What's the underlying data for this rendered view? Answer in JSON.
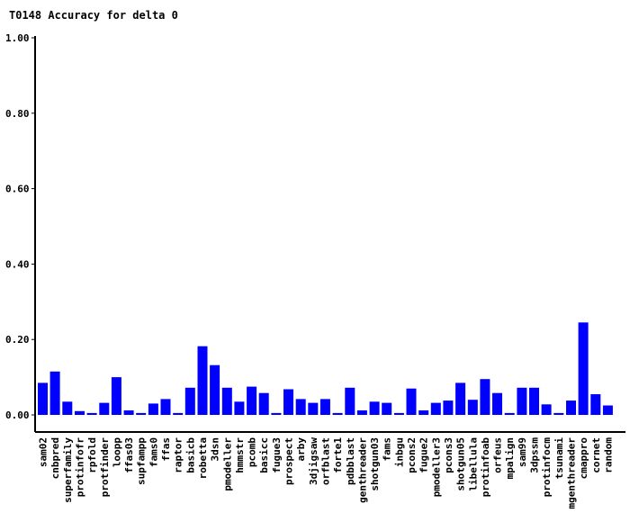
{
  "chart_data": {
    "type": "bar",
    "title": "T0148 Accuracy for delta 0",
    "xlabel": "",
    "ylabel": "",
    "ylim": [
      0,
      1
    ],
    "y_ticks": [
      "0.00",
      "0.20",
      "0.40",
      "0.60",
      "0.80",
      "1.00"
    ],
    "bar_color": "#0000ff",
    "grid": false,
    "categories": [
      "sam02",
      "cnbpred",
      "superfamily",
      "protinfofr",
      "rpfold",
      "protfinder",
      "loopp",
      "ffas03",
      "supfampp",
      "fams0",
      "ffas",
      "raptor",
      "basicb",
      "robetta",
      "3dsn",
      "pmodeller",
      "hmmstr",
      "pcomb",
      "basicc",
      "fugue3",
      "prospect",
      "arby",
      "3djigsaw",
      "orfblast",
      "forte1",
      "pdbblast",
      "genthreader",
      "shotgun03",
      "fams",
      "inbgu",
      "pcons2",
      "fugue2",
      "pmodeller3",
      "pcons3",
      "shotgun05",
      "libellula",
      "protinfoab",
      "orfeus",
      "mpalign",
      "sam99",
      "3dpssm",
      "protinfocm",
      "tsunami",
      "mgenthreader",
      "cmappro",
      "cornet",
      "random"
    ],
    "values": [
      0.085,
      0.115,
      0.035,
      0.01,
      0.005,
      0.032,
      0.1,
      0.012,
      0.005,
      0.03,
      0.042,
      0.005,
      0.072,
      0.182,
      0.132,
      0.072,
      0.035,
      0.075,
      0.058,
      0.005,
      0.068,
      0.042,
      0.032,
      0.042,
      0.005,
      0.072,
      0.012,
      0.035,
      0.032,
      0.005,
      0.07,
      0.012,
      0.032,
      0.038,
      0.085,
      0.04,
      0.095,
      0.058,
      0.005,
      0.072,
      0.072,
      0.028,
      0.005,
      0.038,
      0.245,
      0.055,
      0.025
    ]
  }
}
